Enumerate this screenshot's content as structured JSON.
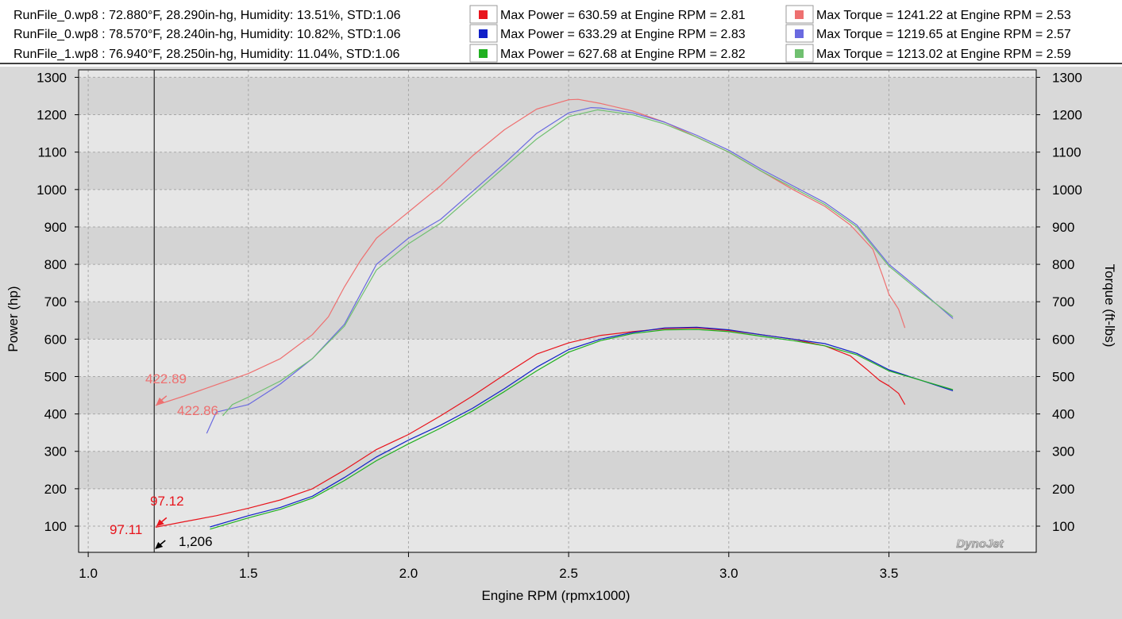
{
  "legend": {
    "runs": [
      {
        "text": "RunFile_0.wp8  : 72.880°F, 28.290in-hg, Humidity: 13.51%, STD:1.06",
        "power_text": "Max Power = 630.59 at Engine RPM = 2.81",
        "torque_text": "Max Torque = 1241.22 at Engine RPM = 2.53",
        "power_color": "#e8141c",
        "torque_color": "#ee7070"
      },
      {
        "text": "RunFile_0.wp8  : 78.570°F, 28.240in-hg, Humidity: 10.82%, STD:1.06",
        "power_text": "Max Power = 633.29 at Engine RPM = 2.83",
        "torque_text": "Max Torque = 1219.65 at Engine RPM = 2.57",
        "power_color": "#1020c8",
        "torque_color": "#6a6ae0"
      },
      {
        "text": "RunFile_1.wp8  : 76.940°F, 28.250in-hg, Humidity: 11.04%, STD:1.06",
        "power_text": "Max Power = 627.68 at Engine RPM = 2.82",
        "torque_text": "Max Torque = 1213.02 at Engine RPM = 2.59",
        "power_color": "#20b020",
        "torque_color": "#70c070"
      }
    ]
  },
  "chart_data": {
    "type": "line",
    "xlabel": "Engine RPM (rpmx1000)",
    "ylabel": "Power (hp)",
    "y2label": "Torque (ft-lbs)",
    "xlim": [
      0.97,
      3.96
    ],
    "ylim": [
      30,
      1320
    ],
    "x_ticks": [
      "1.0",
      "1.5",
      "2.0",
      "2.5",
      "3.0",
      "3.5"
    ],
    "y_ticks": [
      "100",
      "200",
      "300",
      "400",
      "500",
      "600",
      "700",
      "800",
      "900",
      "1000",
      "1100",
      "1200",
      "1300"
    ],
    "grid": true,
    "series": [
      {
        "color": "#e8141c",
        "x": [
          1.21,
          1.3,
          1.4,
          1.5,
          1.6,
          1.7,
          1.8,
          1.9,
          2.0,
          2.1,
          2.2,
          2.3,
          2.4,
          2.5,
          2.6,
          2.7,
          2.8,
          2.9,
          3.0,
          3.1,
          3.2,
          3.3,
          3.38,
          3.43,
          3.47,
          3.5,
          3.53,
          3.55
        ],
        "y": [
          97.1,
          112,
          128,
          148,
          170,
          200,
          250,
          305,
          345,
          395,
          448,
          505,
          560,
          590,
          610,
          620,
          628,
          630,
          623,
          612,
          600,
          582,
          555,
          520,
          490,
          475,
          455,
          425
        ]
      },
      {
        "color": "#1020c8",
        "x": [
          1.38,
          1.5,
          1.6,
          1.7,
          1.8,
          1.9,
          2.0,
          2.1,
          2.2,
          2.3,
          2.4,
          2.5,
          2.6,
          2.7,
          2.8,
          2.9,
          3.0,
          3.1,
          3.2,
          3.3,
          3.4,
          3.5,
          3.6,
          3.7
        ],
        "y": [
          98,
          128,
          150,
          180,
          230,
          285,
          330,
          370,
          415,
          468,
          525,
          572,
          600,
          618,
          630,
          632,
          625,
          612,
          600,
          588,
          562,
          518,
          490,
          462
        ]
      },
      {
        "color": "#20b020",
        "x": [
          1.38,
          1.5,
          1.6,
          1.7,
          1.8,
          1.9,
          2.0,
          2.1,
          2.2,
          2.3,
          2.4,
          2.5,
          2.6,
          2.7,
          2.8,
          2.9,
          3.0,
          3.1,
          3.2,
          3.3,
          3.4,
          3.5,
          3.6,
          3.7
        ],
        "y": [
          92,
          122,
          145,
          175,
          222,
          275,
          320,
          362,
          408,
          460,
          515,
          565,
          596,
          615,
          625,
          626,
          620,
          608,
          596,
          582,
          558,
          515,
          490,
          465
        ]
      },
      {
        "color": "#ee7070",
        "x": [
          1.21,
          1.3,
          1.4,
          1.5,
          1.6,
          1.7,
          1.75,
          1.8,
          1.85,
          1.9,
          2.0,
          2.1,
          2.2,
          2.3,
          2.4,
          2.5,
          2.53,
          2.6,
          2.7,
          2.8,
          2.9,
          3.0,
          3.1,
          3.2,
          3.3,
          3.38,
          3.45,
          3.48,
          3.5,
          3.53,
          3.55
        ],
        "y": [
          422.9,
          448,
          478,
          508,
          548,
          612,
          660,
          740,
          810,
          870,
          940,
          1010,
          1090,
          1160,
          1215,
          1240,
          1241,
          1230,
          1210,
          1180,
          1140,
          1100,
          1050,
          1000,
          955,
          905,
          840,
          770,
          720,
          680,
          630
        ]
      },
      {
        "color": "#6a6ae0",
        "x": [
          1.37,
          1.4,
          1.5,
          1.6,
          1.7,
          1.8,
          1.85,
          1.9,
          2.0,
          2.1,
          2.2,
          2.3,
          2.4,
          2.5,
          2.57,
          2.6,
          2.7,
          2.8,
          2.9,
          3.0,
          3.1,
          3.2,
          3.3,
          3.4,
          3.5,
          3.6,
          3.7
        ],
        "y": [
          348,
          405,
          425,
          480,
          548,
          640,
          720,
          800,
          870,
          920,
          995,
          1070,
          1150,
          1205,
          1219,
          1218,
          1205,
          1180,
          1145,
          1105,
          1055,
          1010,
          965,
          905,
          800,
          730,
          655
        ]
      },
      {
        "color": "#70c070",
        "x": [
          1.42,
          1.45,
          1.5,
          1.6,
          1.7,
          1.8,
          1.85,
          1.9,
          2.0,
          2.1,
          2.2,
          2.3,
          2.4,
          2.5,
          2.59,
          2.6,
          2.7,
          2.8,
          2.9,
          3.0,
          3.1,
          3.2,
          3.3,
          3.4,
          3.5,
          3.6,
          3.7
        ],
        "y": [
          395,
          425,
          445,
          488,
          548,
          635,
          710,
          785,
          855,
          910,
          985,
          1060,
          1135,
          1195,
          1213,
          1212,
          1200,
          1175,
          1140,
          1100,
          1050,
          1005,
          960,
          900,
          795,
          725,
          660
        ]
      }
    ],
    "annotations": [
      {
        "text": "422.89",
        "x": 1.21,
        "y": 422.9,
        "color": "#ee7070"
      },
      {
        "text": "422.86",
        "x": 1.21,
        "y": 422.9,
        "color": "#ee7070"
      },
      {
        "text": "97.12",
        "x": 1.21,
        "y": 97.1,
        "color": "#e8141c"
      },
      {
        "text": "97.11",
        "x": 1.21,
        "y": 97.1,
        "color": "#e8141c"
      },
      {
        "text": "1,206",
        "x": 1.206,
        "y": 30,
        "color": "#000000"
      }
    ],
    "cursor_x": 1.206,
    "watermark": "DynoJet"
  }
}
